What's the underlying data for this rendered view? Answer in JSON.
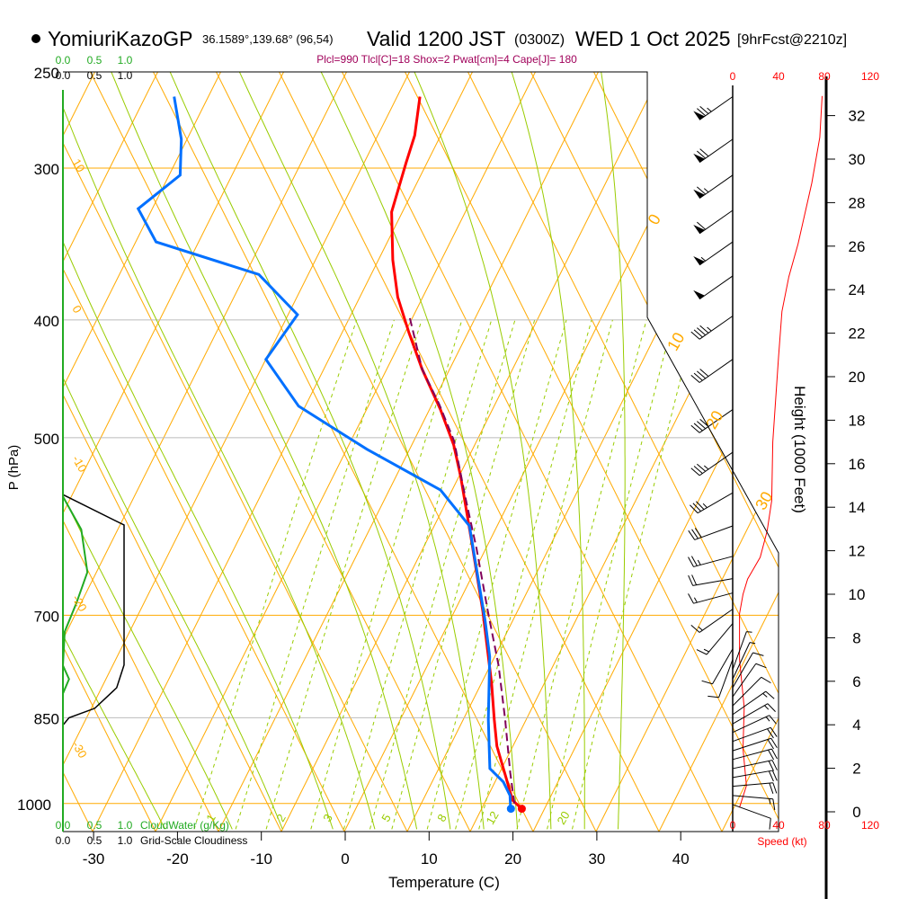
{
  "header": {
    "station": "YomiuriKazoGP",
    "coords": "36.1589°,139.68° (96,54)",
    "valid": "Valid 1200 JST",
    "utc": "(0300Z)",
    "date": "WED 1 Oct 2025",
    "forecast": "[9hrFcst@2210z]"
  },
  "parcel_info": "Plcl=990 Tlcl[C]=18 Shox=2 Pwat[cm]=4 Cape[J]= 180",
  "chart_data": {
    "type": "line",
    "title": "Skew-T sounding",
    "xlabel": "Temperature (C)",
    "ylabel": "P (hPa)",
    "y2label": "Height (1000 Feet)",
    "speed_label": "Speed (kt)",
    "cloudwater_label": "CloudWater (g/Kg)",
    "cloudiness_label": "Grid-Scale Cloudiness",
    "cloud_scale_ticks": [
      "0.0",
      "0.5",
      "1.0"
    ],
    "pressure_ticks": [
      250,
      300,
      400,
      500,
      700,
      850,
      1000
    ],
    "temp_ticks": [
      -30,
      -20,
      -10,
      0,
      10,
      20,
      30,
      40
    ],
    "height_ticks": [
      0,
      2,
      4,
      6,
      8,
      10,
      12,
      14,
      16,
      18,
      20,
      22,
      24,
      26,
      28,
      30,
      32
    ],
    "speed_ticks": [
      0,
      40,
      80,
      120
    ],
    "mixing_ratio_labels": [
      "1",
      "2",
      "3",
      "5",
      "8",
      "12",
      "20"
    ],
    "mixing_ratio_lines": [
      1,
      1.5,
      2,
      3,
      4,
      5,
      6,
      8,
      10,
      12,
      16,
      20,
      24
    ],
    "moist_adiabat_starts": [
      -20,
      -12,
      -6,
      0,
      5,
      10,
      14,
      18,
      22,
      26,
      30,
      34
    ],
    "left_line_labels": [
      "10",
      "0",
      "-10",
      "-20",
      "-30"
    ],
    "right_line_labels": [
      "0",
      "10",
      "20",
      "30"
    ],
    "colors": {
      "temperature": "#ff0000",
      "dewpoint": "#0070ff",
      "parcel": "#80005a",
      "grid": "#ffaa00",
      "moist": "#99cc00",
      "cloudwater": "#22aa22",
      "cloudiness": "#000000"
    },
    "series": [
      {
        "name": "Temperature",
        "points": [
          [
            1010,
            21.3
          ],
          [
            994,
            19.7
          ],
          [
            897,
            14.6
          ],
          [
            853,
            12.7
          ],
          [
            796,
            10.2
          ],
          [
            695,
            4.9
          ],
          [
            606,
            -0.8
          ],
          [
            538,
            -5.8
          ],
          [
            507,
            -8.5
          ],
          [
            474,
            -12.2
          ],
          [
            439,
            -16.8
          ],
          [
            410,
            -20.5
          ],
          [
            383,
            -24.0
          ],
          [
            357,
            -26.8
          ],
          [
            326,
            -29.8
          ],
          [
            297,
            -31.0
          ],
          [
            282,
            -31.6
          ],
          [
            262,
            -33.3
          ]
        ]
      },
      {
        "name": "Dewpoint",
        "points": [
          [
            1011,
            20.0
          ],
          [
            985,
            19.1
          ],
          [
            960,
            17.5
          ],
          [
            936,
            15.1
          ],
          [
            853,
            12.0
          ],
          [
            757,
            8.4
          ],
          [
            707,
            5.7
          ],
          [
            638,
            1.4
          ],
          [
            591,
            -1.8
          ],
          [
            552,
            -7.4
          ],
          [
            511,
            -18.6
          ],
          [
            471,
            -29.3
          ],
          [
            431,
            -36.0
          ],
          [
            396,
            -34.9
          ],
          [
            367,
            -41.9
          ],
          [
            345,
            -56.1
          ],
          [
            324,
            -60.2
          ],
          [
            304,
            -57.2
          ],
          [
            284,
            -59.2
          ],
          [
            262,
            -62.6
          ]
        ]
      },
      {
        "name": "Parcel",
        "points": [
          [
            1000,
            20.1
          ],
          [
            944,
            17.8
          ],
          [
            853,
            14.0
          ],
          [
            770,
            10.0
          ],
          [
            695,
            5.5
          ],
          [
            617,
            0.4
          ],
          [
            561,
            -3.9
          ],
          [
            503,
            -8.7
          ],
          [
            469,
            -12.7
          ],
          [
            439,
            -16.8
          ],
          [
            396,
            -21.6
          ]
        ]
      }
    ],
    "surface_points": {
      "temperature": 21.3,
      "dewpoint": 20.0,
      "pressure": 1010
    },
    "wind_speed_profile": {
      "height_kft": [
        0.2,
        1.2,
        2.9,
        4.8,
        7,
        9.1,
        10,
        10.7,
        11.7,
        12.9,
        14.3,
        17,
        20.9,
        23,
        24.6,
        26.1,
        28.9,
        31,
        32.9
      ],
      "speed_kt": [
        6,
        12,
        9,
        10,
        6,
        6,
        9,
        13,
        24,
        30,
        34,
        35,
        40,
        43,
        49,
        57,
        69,
        76,
        78
      ]
    },
    "wind_barbs": [
      {
        "p": 262,
        "dir": 235,
        "kt": 75
      },
      {
        "p": 284,
        "dir": 235,
        "kt": 70
      },
      {
        "p": 304,
        "dir": 235,
        "kt": 65
      },
      {
        "p": 325,
        "dir": 235,
        "kt": 60
      },
      {
        "p": 345,
        "dir": 235,
        "kt": 55
      },
      {
        "p": 368,
        "dir": 235,
        "kt": 50
      },
      {
        "p": 397,
        "dir": 235,
        "kt": 45
      },
      {
        "p": 431,
        "dir": 235,
        "kt": 40
      },
      {
        "p": 474,
        "dir": 235,
        "kt": 40
      },
      {
        "p": 514,
        "dir": 235,
        "kt": 35
      },
      {
        "p": 555,
        "dir": 240,
        "kt": 35
      },
      {
        "p": 591,
        "dir": 250,
        "kt": 30
      },
      {
        "p": 626,
        "dir": 255,
        "kt": 25
      },
      {
        "p": 653,
        "dir": 260,
        "kt": 20
      },
      {
        "p": 671,
        "dir": 255,
        "kt": 15
      },
      {
        "p": 692,
        "dir": 235,
        "kt": 15
      },
      {
        "p": 711,
        "dir": 220,
        "kt": 15
      },
      {
        "p": 746,
        "dir": 210,
        "kt": 10
      },
      {
        "p": 761,
        "dir": 200,
        "kt": 10
      },
      {
        "p": 776,
        "dir": 20,
        "kt": 5
      },
      {
        "p": 790,
        "dir": 25,
        "kt": 5
      },
      {
        "p": 803,
        "dir": 30,
        "kt": 10
      },
      {
        "p": 817,
        "dir": 35,
        "kt": 10
      },
      {
        "p": 831,
        "dir": 45,
        "kt": 10
      },
      {
        "p": 845,
        "dir": 55,
        "kt": 15
      },
      {
        "p": 860,
        "dir": 60,
        "kt": 15
      },
      {
        "p": 874,
        "dir": 65,
        "kt": 15
      },
      {
        "p": 889,
        "dir": 70,
        "kt": 20
      },
      {
        "p": 905,
        "dir": 72,
        "kt": 20
      },
      {
        "p": 920,
        "dir": 75,
        "kt": 20
      },
      {
        "p": 936,
        "dir": 78,
        "kt": 20
      },
      {
        "p": 952,
        "dir": 80,
        "kt": 20
      },
      {
        "p": 968,
        "dir": 85,
        "kt": 20
      },
      {
        "p": 985,
        "dir": 95,
        "kt": 15
      },
      {
        "p": 1002,
        "dir": 110,
        "kt": 10
      }
    ],
    "cloudiness": [
      [
        557,
        0
      ],
      [
        590,
        1.0
      ],
      [
        769,
        1.0
      ],
      [
        803,
        0.88
      ],
      [
        835,
        0.52
      ],
      [
        850,
        0.1
      ],
      [
        862,
        0
      ]
    ],
    "cloudwater": [
      [
        559,
        0
      ],
      [
        595,
        0.3
      ],
      [
        645,
        0.4
      ],
      [
        684,
        0.22
      ],
      [
        722,
        0.03
      ],
      [
        770,
        0
      ],
      [
        790,
        0.1
      ],
      [
        812,
        0
      ]
    ]
  }
}
